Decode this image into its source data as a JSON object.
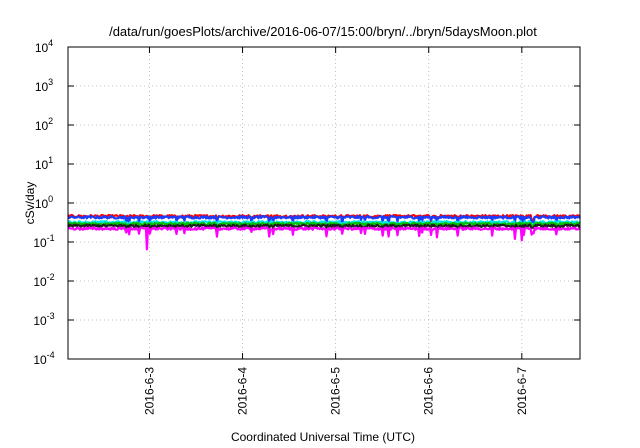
{
  "chart_data": {
    "type": "line",
    "title": "/data/run/goesPlots/archive/2016-06-07/15:00/bryn/../bryn/5daysMoon.plot",
    "xlabel": "Coordinated Universal Time (UTC)",
    "ylabel": "cSv/day",
    "yscale": "log",
    "ylim": [
      0.0001,
      10000
    ],
    "y_ticks": [
      {
        "base": "10",
        "exp": "-4",
        "value": 0.0001
      },
      {
        "base": "10",
        "exp": "-3",
        "value": 0.001
      },
      {
        "base": "10",
        "exp": "-2",
        "value": 0.01
      },
      {
        "base": "10",
        "exp": "-1",
        "value": 0.1
      },
      {
        "base": "10",
        "exp": "0",
        "value": 1
      },
      {
        "base": "10",
        "exp": "1",
        "value": 10
      },
      {
        "base": "10",
        "exp": "2",
        "value": 100
      },
      {
        "base": "10",
        "exp": "3",
        "value": 1000
      },
      {
        "base": "10",
        "exp": "4",
        "value": 10000
      }
    ],
    "xlim": [
      "2016-06-02 03:00",
      "2016-06-07 15:00"
    ],
    "x_ticks": [
      {
        "label": "2016-6-3",
        "date": "2016-06-03"
      },
      {
        "label": "2016-6-4",
        "date": "2016-06-04"
      },
      {
        "label": "2016-6-5",
        "date": "2016-06-05"
      },
      {
        "label": "2016-6-6",
        "date": "2016-06-06"
      },
      {
        "label": "2016-6-7",
        "date": "2016-06-07"
      }
    ],
    "grid": true,
    "series": [
      {
        "color": "#ff0000",
        "level": 0.46,
        "dips": 0.33
      },
      {
        "color": "#1a3cff",
        "level": 0.43,
        "dips": 0.27
      },
      {
        "color": "#00e5e5",
        "level": 0.32,
        "dips": 0.26
      },
      {
        "color": "#00c000",
        "level": 0.29,
        "dips": 0.24
      },
      {
        "color": "#202020",
        "level": 0.26,
        "dips": 0.22
      },
      {
        "color": "#ff00ff",
        "level": 0.22,
        "dips": 0.12
      }
    ]
  }
}
